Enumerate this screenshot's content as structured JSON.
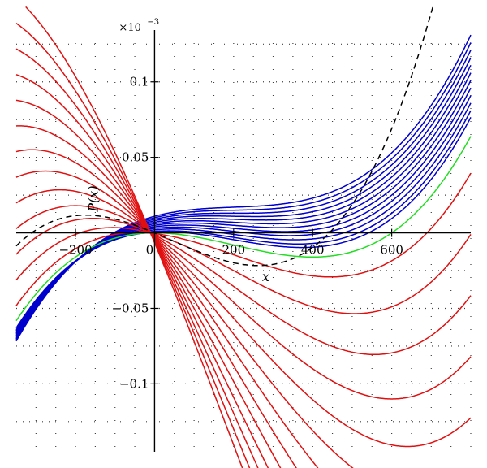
{
  "chart_data": {
    "type": "line",
    "title": "",
    "xlabel": "",
    "ylabel": "P(x)",
    "y_exponent_label": "×10",
    "y_exponent_power": "−3",
    "curve_annotation": "x",
    "xlim": [
      -350,
      800
    ],
    "ylim": [
      -0.145,
      0.13
    ],
    "x_ticks": [
      -200,
      200,
      400,
      600
    ],
    "x_tick_labels": [
      "−200",
      "200",
      "400",
      "600"
    ],
    "origin_label": "0",
    "y_ticks": [
      0.1,
      0.05,
      -0.05,
      -0.1
    ],
    "y_tick_labels": [
      "0.1",
      "0.05",
      "−0.05",
      "−0.1"
    ],
    "grid": "dotted",
    "colors": {
      "blue_family": "#0000cc",
      "critical": "#22dd22",
      "red_family": "#e01010",
      "envelope": "#000000",
      "axes": "#000000"
    },
    "model": "P(x) = a*x^3 + b*x^2 + c*x + d (cubic family)",
    "series": [
      {
        "color": "blue",
        "a": 5e-10,
        "b": -3e-07,
        "c": 7e-05,
        "d": 0.011
      },
      {
        "color": "blue",
        "a": 5e-10,
        "b": -3e-07,
        "c": 6.5e-05,
        "d": 0.01
      },
      {
        "color": "blue",
        "a": 5e-10,
        "b": -3e-07,
        "c": 6e-05,
        "d": 0.009
      },
      {
        "color": "blue",
        "a": 5e-10,
        "b": -3e-07,
        "c": 5.5e-05,
        "d": 0.008
      },
      {
        "color": "blue",
        "a": 5e-10,
        "b": -3e-07,
        "c": 5e-05,
        "d": 0.007
      },
      {
        "color": "blue",
        "a": 5e-10,
        "b": -3e-07,
        "c": 4.5e-05,
        "d": 0.006
      },
      {
        "color": "blue",
        "a": 5e-10,
        "b": -3e-07,
        "c": 4e-05,
        "d": 0.005
      },
      {
        "color": "blue",
        "a": 5e-10,
        "b": -3e-07,
        "c": 3.5e-05,
        "d": 0.004
      },
      {
        "color": "blue",
        "a": 5e-10,
        "b": -3e-07,
        "c": 3e-05,
        "d": 0.003
      },
      {
        "color": "blue",
        "a": 5e-10,
        "b": -3e-07,
        "c": 2.5e-05,
        "d": 0.002
      },
      {
        "color": "blue",
        "a": 5e-10,
        "b": -3e-07,
        "c": 2e-05,
        "d": 0.001
      },
      {
        "color": "blue",
        "a": 5e-10,
        "b": -3e-07,
        "c": 1.5e-05,
        "d": 0.0005
      },
      {
        "color": "green",
        "a": 5e-10,
        "b": -3e-07,
        "c": 0.0,
        "d": 0.0
      },
      {
        "color": "red",
        "a": 5e-10,
        "b": -3e-07,
        "c": -3e-05,
        "d": -0.0005
      },
      {
        "color": "red",
        "a": 5e-10,
        "b": -3e-07,
        "c": -8e-05,
        "d": -0.001
      },
      {
        "color": "red",
        "a": 5e-10,
        "b": -3e-07,
        "c": -0.00013,
        "d": -0.0015
      },
      {
        "color": "red",
        "a": 5e-10,
        "b": -3e-07,
        "c": -0.00018,
        "d": -0.002
      },
      {
        "color": "red",
        "a": 5e-10,
        "b": -3e-07,
        "c": -0.00023,
        "d": -0.0025
      },
      {
        "color": "red",
        "a": 5e-10,
        "b": -3e-07,
        "c": -0.00028,
        "d": -0.003
      },
      {
        "color": "red",
        "a": 5e-10,
        "b": -3e-07,
        "c": -0.00033,
        "d": -0.0035
      },
      {
        "color": "red",
        "a": 5e-10,
        "b": -3e-07,
        "c": -0.00038,
        "d": -0.004
      },
      {
        "color": "red",
        "a": 5e-10,
        "b": -3e-07,
        "c": -0.00043,
        "d": -0.0045
      },
      {
        "color": "red",
        "a": 5e-10,
        "b": -3e-07,
        "c": -0.00048,
        "d": -0.005
      },
      {
        "color": "red",
        "a": 5e-10,
        "b": -3e-07,
        "c": -0.00053,
        "d": -0.0055
      },
      {
        "color": "red",
        "a": 5e-10,
        "b": -3e-07,
        "c": -0.00058,
        "d": -0.006
      },
      {
        "color": "red",
        "a": 5e-10,
        "b": -3e-07,
        "c": -0.00063,
        "d": -0.0065
      }
    ],
    "envelope": {
      "color": "black",
      "style": "dashed",
      "a": 8e-10,
      "b": -1.05e-07,
      "c": -0.00011,
      "d": 0.0
    }
  }
}
